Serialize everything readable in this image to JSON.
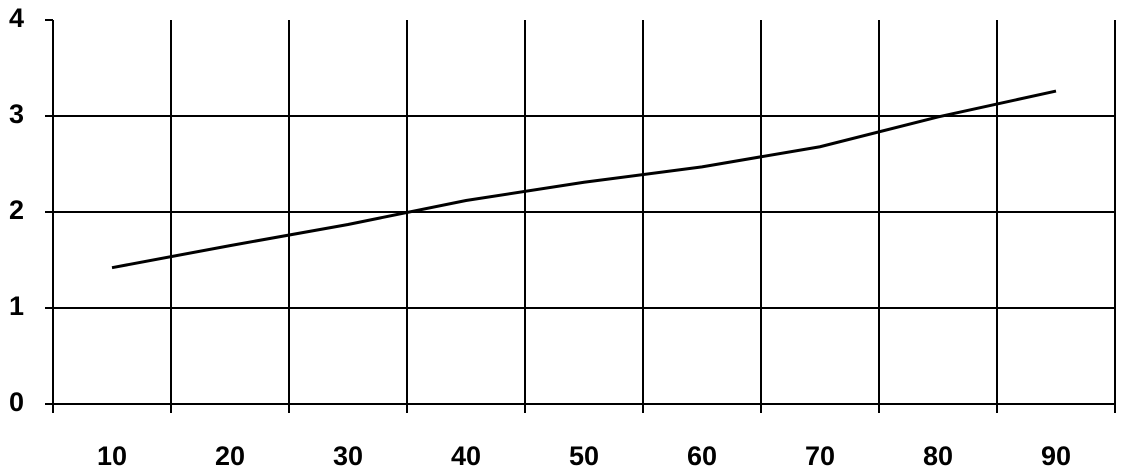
{
  "chart_data": {
    "type": "line",
    "categories": [
      "10",
      "20",
      "30",
      "40",
      "50",
      "60",
      "70",
      "80",
      "90"
    ],
    "values": [
      1.42,
      1.65,
      1.87,
      2.12,
      2.31,
      2.47,
      2.68,
      2.99,
      3.26
    ],
    "color": "#000000",
    "ylim": [
      0,
      4
    ],
    "yticks": [
      0,
      1,
      2,
      3,
      4
    ],
    "grid": true
  }
}
